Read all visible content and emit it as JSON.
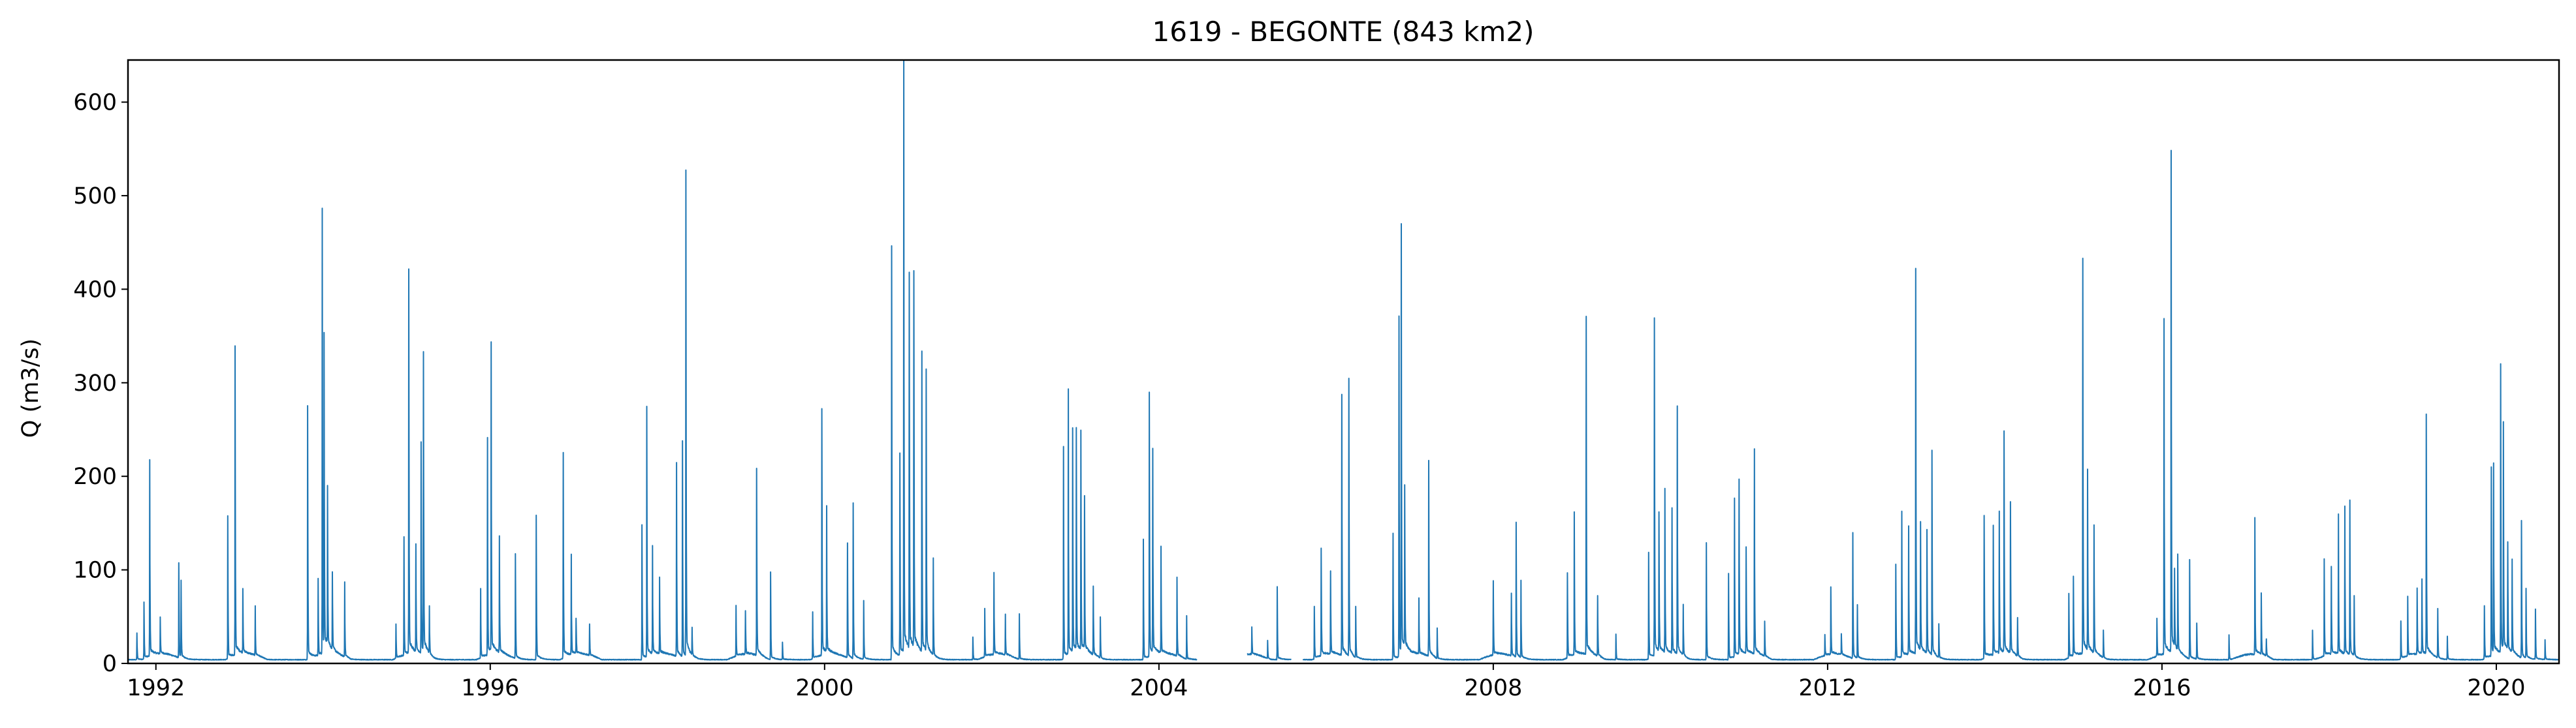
{
  "chart_data": {
    "type": "line",
    "title": "1619 - BEGONTE (843 km2)",
    "xlabel": "",
    "ylabel": "Q (m3/s)",
    "xlim": [
      "1991-09-01",
      "2020-10-01"
    ],
    "ylim": [
      0,
      645
    ],
    "x_ticks": [
      "1992",
      "1996",
      "2000",
      "2004",
      "2008",
      "2012",
      "2016",
      "2020"
    ],
    "y_ticks": [
      0,
      100,
      200,
      300,
      400,
      500,
      600
    ],
    "grid": false,
    "legend": "none",
    "colors": {
      "series": "#1f77b4",
      "axes": "#000000",
      "background": "#ffffff"
    },
    "series": [
      {
        "data_gaps": [
          [
            "2004-06-15",
            "2005-01-20"
          ],
          [
            "2005-08-01",
            "2005-09-20"
          ]
        ],
        "peaks": [
          [
            "1991-10-10",
            30
          ],
          [
            "1991-11-10",
            60
          ],
          [
            "1991-12-05",
            210
          ],
          [
            "1992-01-20",
            40
          ],
          [
            "1992-04-10",
            105
          ],
          [
            "1992-04-20",
            80
          ],
          [
            "1992-11-10",
            145
          ],
          [
            "1992-12-12",
            320
          ],
          [
            "1993-01-15",
            70
          ],
          [
            "1993-03-10",
            50
          ],
          [
            "1993-10-25",
            292
          ],
          [
            "1993-12-10",
            80
          ],
          [
            "1993-12-28",
            465
          ],
          [
            "1994-01-05",
            315
          ],
          [
            "1994-01-20",
            185
          ],
          [
            "1994-02-10",
            90
          ],
          [
            "1994-04-05",
            80
          ],
          [
            "1994-11-15",
            40
          ],
          [
            "1994-12-20",
            120
          ],
          [
            "1995-01-10",
            407
          ],
          [
            "1995-02-10",
            125
          ],
          [
            "1995-03-05",
            240
          ],
          [
            "1995-03-15",
            345
          ],
          [
            "1995-04-10",
            50
          ],
          [
            "1995-11-20",
            70
          ],
          [
            "1995-12-20",
            250
          ],
          [
            "1996-01-05",
            305
          ],
          [
            "1996-02-10",
            120
          ],
          [
            "1996-04-20",
            120
          ],
          [
            "1996-07-20",
            155
          ],
          [
            "1996-11-15",
            235
          ],
          [
            "1996-12-20",
            100
          ],
          [
            "1997-01-10",
            40
          ],
          [
            "1997-03-10",
            35
          ],
          [
            "1997-10-25",
            155
          ],
          [
            "1997-11-15",
            260
          ],
          [
            "1997-12-10",
            110
          ],
          [
            "1998-01-10",
            80
          ],
          [
            "1998-03-25",
            200
          ],
          [
            "1998-04-20",
            215
          ],
          [
            "1998-05-05",
            480
          ],
          [
            "1998-06-01",
            30
          ],
          [
            "1998-12-10",
            50
          ],
          [
            "1999-01-20",
            50
          ],
          [
            "1999-03-10",
            210
          ],
          [
            "1999-05-10",
            95
          ],
          [
            "1999-07-01",
            20
          ],
          [
            "1999-11-10",
            50
          ],
          [
            "1999-12-20",
            275
          ],
          [
            "2000-01-10",
            145
          ],
          [
            "2000-04-10",
            130
          ],
          [
            "2000-05-05",
            170
          ],
          [
            "2000-06-20",
            60
          ],
          [
            "2000-10-20",
            462
          ],
          [
            "2000-11-25",
            230
          ],
          [
            "2000-12-12",
            615
          ],
          [
            "2001-01-05",
            430
          ],
          [
            "2001-01-25",
            428
          ],
          [
            "2001-03-01",
            340
          ],
          [
            "2001-03-20",
            325
          ],
          [
            "2001-04-20",
            100
          ],
          [
            "2001-10-10",
            25
          ],
          [
            "2001-12-01",
            50
          ],
          [
            "2002-01-10",
            85
          ],
          [
            "2002-03-01",
            40
          ],
          [
            "2002-05-01",
            45
          ],
          [
            "2002-11-10",
            215
          ],
          [
            "2002-12-01",
            262
          ],
          [
            "2002-12-20",
            250
          ],
          [
            "2003-01-05",
            235
          ],
          [
            "2003-01-25",
            225
          ],
          [
            "2003-02-10",
            160
          ],
          [
            "2003-03-20",
            80
          ],
          [
            "2003-04-20",
            40
          ],
          [
            "2003-10-25",
            120
          ],
          [
            "2003-11-20",
            303
          ],
          [
            "2003-12-05",
            225
          ],
          [
            "2004-01-10",
            105
          ],
          [
            "2004-03-20",
            80
          ],
          [
            "2004-05-01",
            45
          ],
          [
            "2005-02-10",
            30
          ],
          [
            "2005-04-20",
            20
          ],
          [
            "2005-06-01",
            75
          ],
          [
            "2005-11-10",
            60
          ],
          [
            "2005-12-10",
            125
          ],
          [
            "2006-01-20",
            90
          ],
          [
            "2006-03-10",
            270
          ],
          [
            "2006-04-10",
            287
          ],
          [
            "2006-05-10",
            50
          ],
          [
            "2006-10-20",
            135
          ],
          [
            "2006-11-15",
            355
          ],
          [
            "2006-11-25",
            465
          ],
          [
            "2006-12-10",
            170
          ],
          [
            "2007-02-10",
            55
          ],
          [
            "2007-03-25",
            205
          ],
          [
            "2007-05-01",
            30
          ],
          [
            "2008-01-01",
            82
          ],
          [
            "2008-03-20",
            70
          ],
          [
            "2008-04-10",
            137
          ],
          [
            "2008-05-01",
            80
          ],
          [
            "2008-11-20",
            95
          ],
          [
            "2008-12-20",
            145
          ],
          [
            "2009-02-10",
            340
          ],
          [
            "2009-04-01",
            70
          ],
          [
            "2009-06-20",
            25
          ],
          [
            "2009-11-10",
            120
          ],
          [
            "2009-12-05",
            362
          ],
          [
            "2009-12-25",
            155
          ],
          [
            "2010-01-20",
            170
          ],
          [
            "2010-02-20",
            150
          ],
          [
            "2010-03-15",
            255
          ],
          [
            "2010-04-10",
            50
          ],
          [
            "2010-07-20",
            125
          ],
          [
            "2010-10-25",
            100
          ],
          [
            "2010-11-20",
            170
          ],
          [
            "2010-12-10",
            185
          ],
          [
            "2011-01-10",
            120
          ],
          [
            "2011-02-15",
            206
          ],
          [
            "2011-04-01",
            40
          ],
          [
            "2011-12-20",
            25
          ],
          [
            "2012-01-15",
            75
          ],
          [
            "2012-03-01",
            25
          ],
          [
            "2012-04-20",
            140
          ],
          [
            "2012-05-10",
            60
          ],
          [
            "2012-10-25",
            100
          ],
          [
            "2012-11-20",
            150
          ],
          [
            "2012-12-20",
            135
          ],
          [
            "2013-01-20",
            393
          ],
          [
            "2013-02-10",
            130
          ],
          [
            "2013-03-10",
            140
          ],
          [
            "2013-04-01",
            208
          ],
          [
            "2013-05-01",
            40
          ],
          [
            "2013-11-15",
            165
          ],
          [
            "2013-12-25",
            145
          ],
          [
            "2014-01-20",
            160
          ],
          [
            "2014-02-10",
            220
          ],
          [
            "2014-03-10",
            175
          ],
          [
            "2014-04-10",
            40
          ],
          [
            "2014-11-20",
            75
          ],
          [
            "2014-12-10",
            80
          ],
          [
            "2015-01-20",
            425
          ],
          [
            "2015-02-10",
            185
          ],
          [
            "2015-03-10",
            145
          ],
          [
            "2015-04-20",
            30
          ],
          [
            "2015-12-10",
            40
          ],
          [
            "2016-01-10",
            345
          ],
          [
            "2016-02-10",
            513
          ],
          [
            "2016-02-25",
            80
          ],
          [
            "2016-03-10",
            105
          ],
          [
            "2016-05-01",
            105
          ],
          [
            "2016-06-01",
            40
          ],
          [
            "2016-10-20",
            25
          ],
          [
            "2017-02-10",
            140
          ],
          [
            "2017-03-10",
            60
          ],
          [
            "2017-04-01",
            20
          ],
          [
            "2017-10-20",
            30
          ],
          [
            "2017-12-10",
            102
          ],
          [
            "2018-01-10",
            95
          ],
          [
            "2018-02-10",
            140
          ],
          [
            "2018-03-10",
            155
          ],
          [
            "2018-04-01",
            165
          ],
          [
            "2018-04-20",
            60
          ],
          [
            "2018-11-10",
            40
          ],
          [
            "2018-12-10",
            60
          ],
          [
            "2019-01-20",
            75
          ],
          [
            "2019-02-10",
            75
          ],
          [
            "2019-03-01",
            253
          ],
          [
            "2019-04-20",
            55
          ],
          [
            "2019-06-01",
            25
          ],
          [
            "2019-11-10",
            60
          ],
          [
            "2019-12-10",
            200
          ],
          [
            "2019-12-20",
            195
          ],
          [
            "2020-01-20",
            303
          ],
          [
            "2020-02-01",
            230
          ],
          [
            "2020-02-20",
            120
          ],
          [
            "2020-03-10",
            100
          ],
          [
            "2020-04-20",
            155
          ],
          [
            "2020-05-10",
            70
          ],
          [
            "2020-06-20",
            50
          ],
          [
            "2020-08-01",
            20
          ]
        ]
      }
    ]
  }
}
